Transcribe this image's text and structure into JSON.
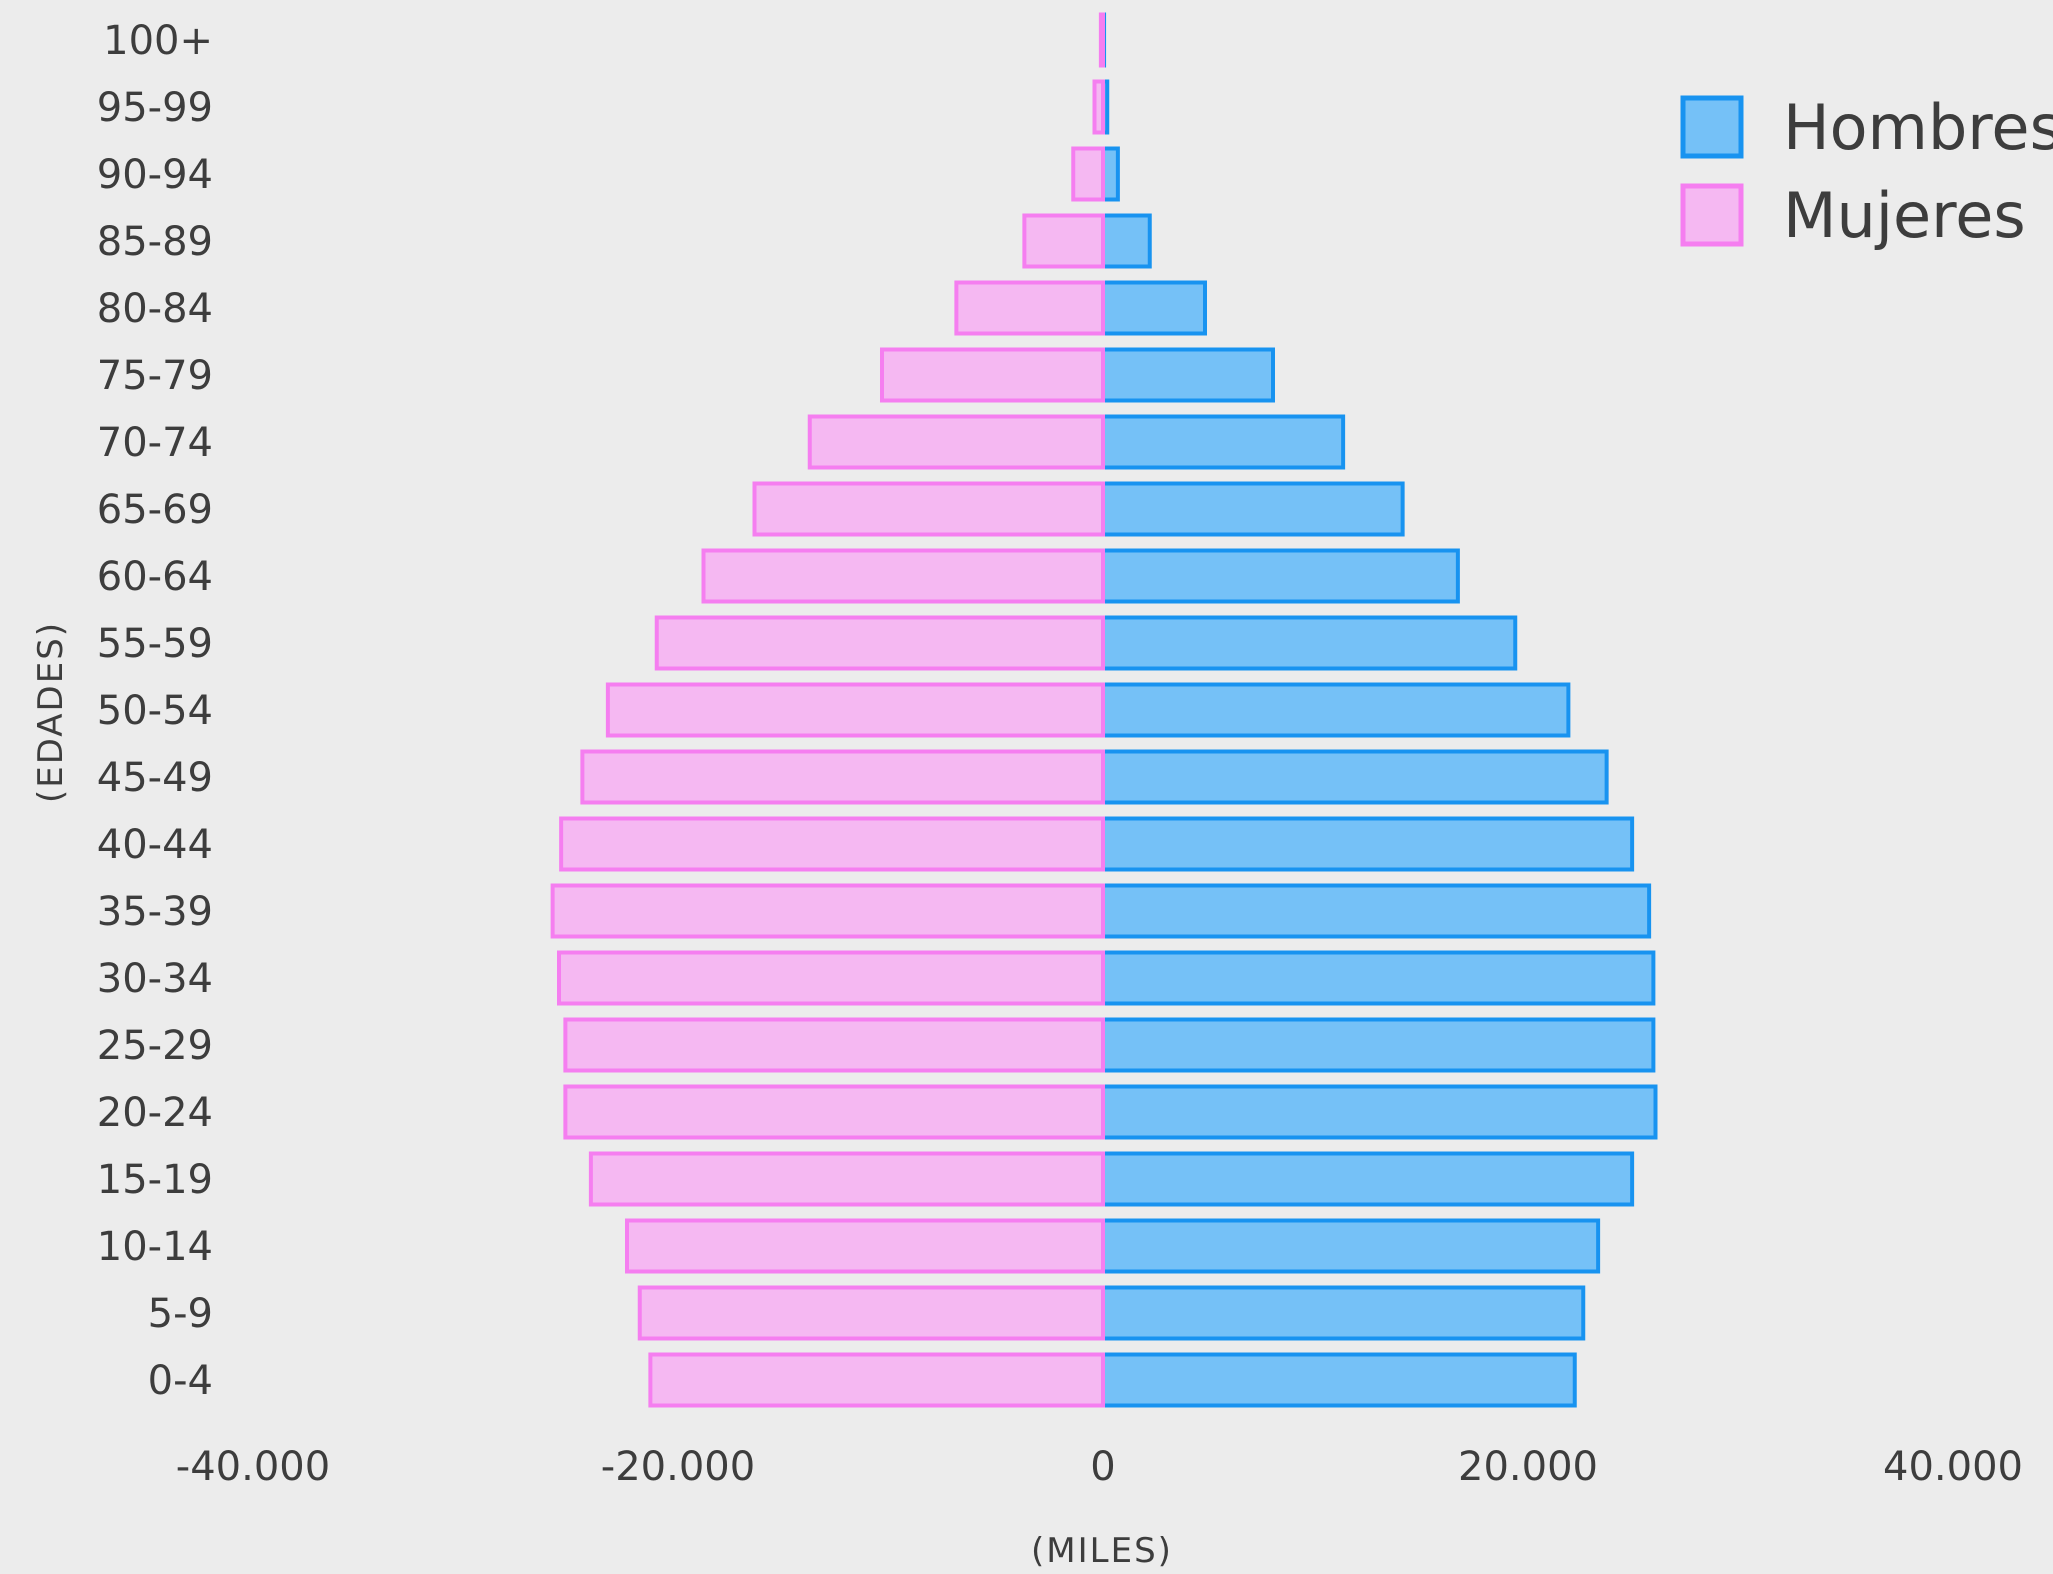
{
  "chart_data": {
    "type": "bar",
    "orientation": "horizontal",
    "layout": "population-pyramid",
    "categories": [
      "100+",
      "95-99",
      "90-94",
      "85-89",
      "80-84",
      "75-79",
      "70-74",
      "65-69",
      "60-64",
      "55-59",
      "50-54",
      "45-49",
      "40-44",
      "35-39",
      "30-34",
      "25-29",
      "20-24",
      "15-19",
      "10-14",
      "5-9",
      "0-4"
    ],
    "series": [
      {
        "name": "Hombres",
        "side": "right",
        "fill": "#75c1f7",
        "stroke": "#1893f0",
        "values": [
          50,
          200,
          700,
          2200,
          4800,
          8000,
          11300,
          14100,
          16700,
          19400,
          21900,
          23700,
          24900,
          25700,
          25900,
          25900,
          26000,
          24900,
          23300,
          22600,
          22200
        ]
      },
      {
        "name": "Mujeres",
        "side": "left",
        "fill": "#f5b8f2",
        "stroke": "#f57ef0",
        "values": [
          100,
          400,
          1400,
          3700,
          6900,
          10400,
          13800,
          16400,
          18800,
          21000,
          23300,
          24500,
          25500,
          25900,
          25600,
          25300,
          25300,
          24100,
          22400,
          21800,
          21300
        ]
      }
    ],
    "xlim": [
      -40000,
      40000
    ],
    "xticks": [
      -40000,
      -20000,
      0,
      20000,
      40000
    ],
    "xtick_labels": [
      "-40.000",
      "-20.000",
      "0",
      "20.000",
      "40.000"
    ],
    "xlabel": "(MILES)",
    "ylabel": "(EDADES)",
    "title": "",
    "grid": false,
    "legend_position": "top-right"
  }
}
